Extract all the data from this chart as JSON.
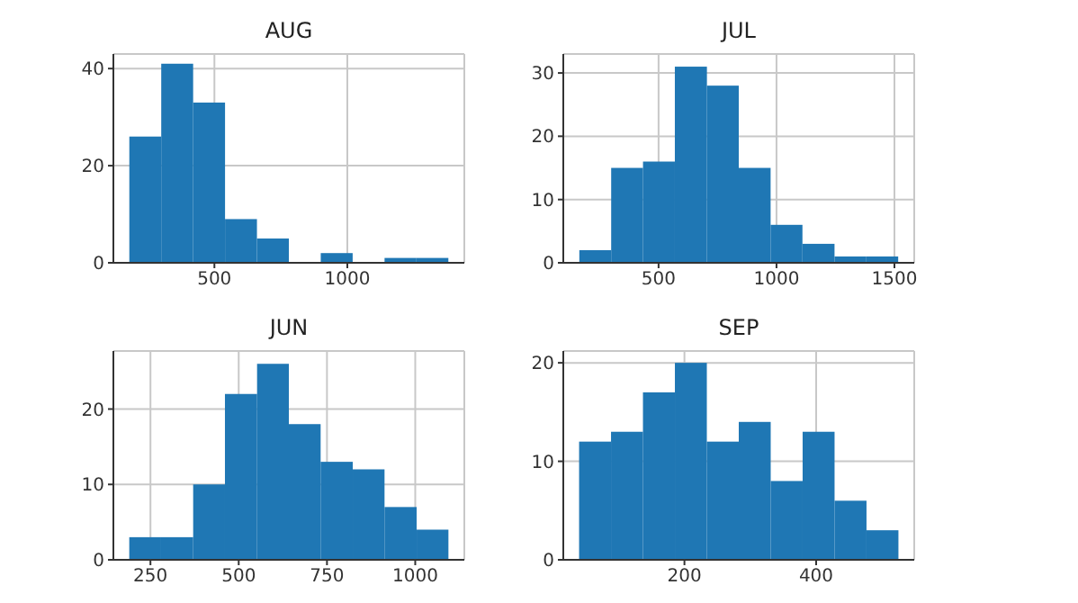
{
  "chart_data": [
    {
      "type": "histogram",
      "title": "AUG",
      "bins": [
        180,
        300,
        420,
        540,
        660,
        780,
        900,
        1020,
        1140,
        1260,
        1380
      ],
      "values": [
        26,
        41,
        33,
        9,
        5,
        0,
        2,
        0,
        1,
        1
      ],
      "color": "#1f77b4",
      "xlim": [
        120,
        1440
      ],
      "xticks": [
        500,
        1000
      ],
      "ylim": [
        0,
        43
      ],
      "yticks": [
        0,
        20,
        40
      ],
      "grid": true
    },
    {
      "type": "histogram",
      "title": "JUL",
      "bins": [
        164,
        299,
        434,
        569,
        705,
        840,
        975,
        1110,
        1246,
        1381,
        1516
      ],
      "values": [
        2,
        15,
        16,
        31,
        28,
        15,
        6,
        3,
        1,
        1
      ],
      "color": "#1f77b4",
      "xlim": [
        96,
        1584
      ],
      "xticks": [
        500,
        1000,
        1500
      ],
      "ylim": [
        0,
        33
      ],
      "yticks": [
        0,
        10,
        20,
        30
      ],
      "grid": true
    },
    {
      "type": "histogram",
      "title": "JUN",
      "bins": [
        190,
        280,
        371,
        461,
        552,
        642,
        732,
        823,
        913,
        1004,
        1094
      ],
      "values": [
        3,
        3,
        10,
        22,
        26,
        18,
        13,
        12,
        7,
        4
      ],
      "color": "#1f77b4",
      "xlim": [
        145,
        1139
      ],
      "xticks": [
        250,
        500,
        750,
        1000
      ],
      "ylim": [
        0,
        27.7
      ],
      "yticks": [
        0,
        10,
        20
      ],
      "grid": true
    },
    {
      "type": "histogram",
      "title": "SEP",
      "bins": [
        40,
        88.5,
        137,
        185.5,
        234,
        282.5,
        331,
        379.5,
        428,
        476.5,
        525
      ],
      "values": [
        12,
        13,
        17,
        20,
        12,
        14,
        8,
        13,
        6,
        3
      ],
      "color": "#1f77b4",
      "xlim": [
        16,
        549
      ],
      "xticks": [
        200,
        400
      ],
      "ylim": [
        0,
        21.2
      ],
      "yticks": [
        0,
        10,
        20
      ],
      "grid": true
    }
  ]
}
